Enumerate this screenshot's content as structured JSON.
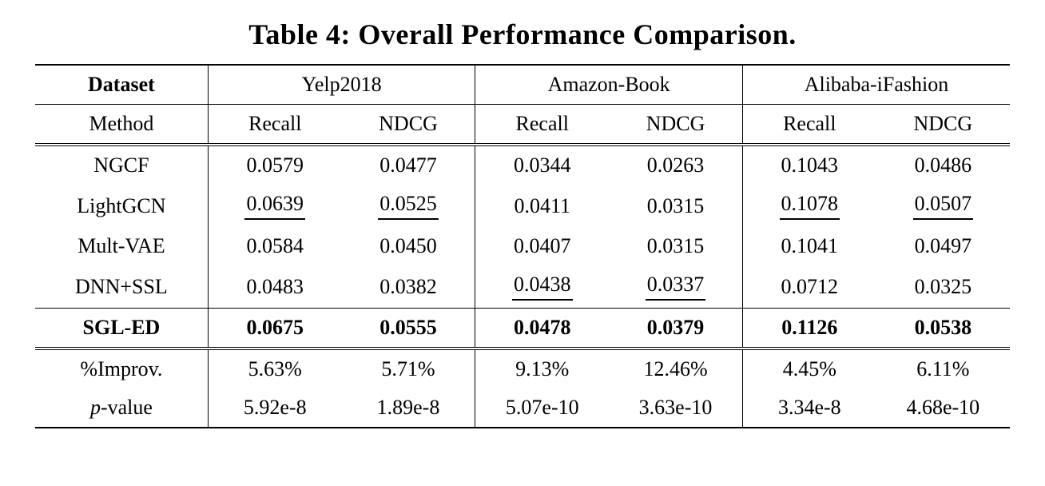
{
  "colors": {
    "background": "#ffffff",
    "text": "#000000"
  },
  "title": "Table 4: Overall Performance Comparison.",
  "table": {
    "header": {
      "dataset_label": "Dataset",
      "method_label": "Method",
      "groups": [
        "Yelp2018",
        "Amazon-Book",
        "Alibaba-iFashion"
      ],
      "metrics": [
        "Recall",
        "NDCG"
      ]
    },
    "rows": [
      {
        "method": "NGCF",
        "values": [
          "0.0579",
          "0.0477",
          "0.0344",
          "0.0263",
          "0.1043",
          "0.0486"
        ]
      },
      {
        "method": "LightGCN",
        "values": [
          "0.0639",
          "0.0525",
          "0.0411",
          "0.0315",
          "0.1078",
          "0.0507"
        ]
      },
      {
        "method": "Mult-VAE",
        "values": [
          "0.0584",
          "0.0450",
          "0.0407",
          "0.0315",
          "0.1041",
          "0.0497"
        ]
      },
      {
        "method": "DNN+SSL",
        "values": [
          "0.0483",
          "0.0382",
          "0.0438",
          "0.0337",
          "0.0712",
          "0.0325"
        ]
      },
      {
        "method": "SGL-ED",
        "values": [
          "0.0675",
          "0.0555",
          "0.0478",
          "0.0379",
          "0.1126",
          "0.0538"
        ]
      }
    ],
    "improv_row": {
      "label": "%Improv.",
      "values": [
        "5.63%",
        "5.71%",
        "9.13%",
        "12.46%",
        "4.45%",
        "6.11%"
      ]
    },
    "pvalue_row": {
      "label_italic": "p",
      "label_rest": "-value",
      "values": [
        "5.92e-8",
        "1.89e-8",
        "5.07e-10",
        "3.63e-10",
        "3.34e-8",
        "4.68e-10"
      ]
    }
  }
}
